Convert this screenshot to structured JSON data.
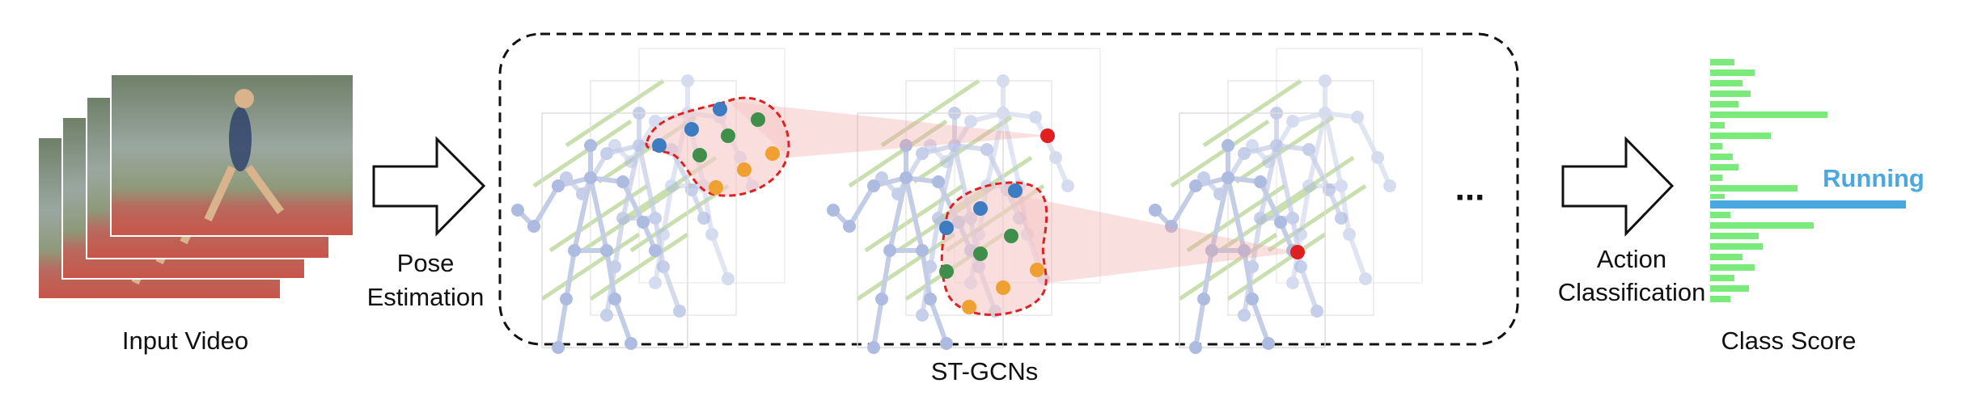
{
  "input_label": "Input Video",
  "pose_label": [
    "Pose",
    "Estimation"
  ],
  "model_label": "ST-GCNs",
  "ellipsis": "...",
  "action_label": [
    "Action",
    "Classification"
  ],
  "score_label": "Class Score",
  "predicted_class": "Running"
}
